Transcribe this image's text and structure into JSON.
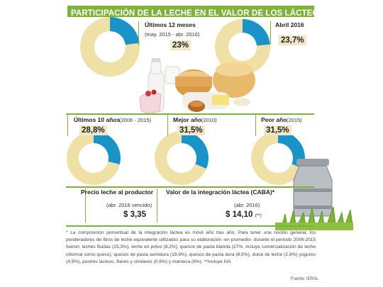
{
  "header": {
    "title": "PARTICIPACIÓN DE LA LECHE EN EL VALOR DE LOS LÁCTEOS",
    "title_mark": "(*)"
  },
  "colors": {
    "milk_share": "#1a93c9",
    "rest": "#efe0a6",
    "accent": "#7fb23a"
  },
  "charts": {
    "last12": {
      "label": "Últimos 12 meses",
      "period": "(may. 2015 - abr. 2016)",
      "value_text": "23%"
    },
    "april": {
      "label": "Abril 2016",
      "value_text": "23,7%"
    },
    "last10": {
      "label": "Últimos 10 años",
      "period": "(2006 - 2015)",
      "value_text": "28,8%"
    },
    "best": {
      "label": "Mejor año",
      "period": "(2010)",
      "value_text": "31,5%"
    },
    "worst": {
      "label": "Peor año",
      "period": "(2015)",
      "value_text": "31,5%"
    }
  },
  "prices": {
    "producer": {
      "label": "Precio leche al productor",
      "period": "(abr. 2016 vencido)",
      "value": "$ 3,35"
    },
    "caba": {
      "label": "Valor de la integración láctea (CABA)",
      "label_mark": "*",
      "period": "(abr. 2016)",
      "value": "$ 14,10",
      "value_mark": "(**)"
    }
  },
  "footnote": "* La composición porcentual de la integración láctea es móvil año tras año. Para tener una noción general, los ponderadores de litros de leche equivalente utilizados para su elaboración -en promedio- durante el período 2006-2015 fueron: leches fluidas (23,3%), leche en polvo (8,2%), quesos de pasta blanda (27%, incluye comercialización de leche informal como queso), quesos de pasta semidura (19,9%), quesos de pasta dura (8,5%), dulce de leche (2,6%) yogures (4,9%), postres lácteos, flanes y similares (0,6%) y manteca (6%). **Incluye IVA",
  "source": "Fuente: IERAL",
  "chart_data": [
    {
      "type": "pie",
      "title": "Últimos 12 meses",
      "subtitle": "(may. 2015 - abr. 2016)",
      "slices": [
        {
          "value": 23
        },
        {
          "value": 77
        }
      ]
    },
    {
      "type": "pie",
      "title": "Abril 2016",
      "slices": [
        {
          "value": 23.7
        },
        {
          "value": 76.3
        }
      ]
    },
    {
      "type": "pie",
      "title": "Últimos 10 años",
      "subtitle": "(2006 - 2015)",
      "slices": [
        {
          "value": 28.8
        },
        {
          "value": 71.2
        }
      ]
    },
    {
      "type": "pie",
      "title": "Mejor año",
      "subtitle": "(2010)",
      "slices": [
        {
          "value": 31.5
        },
        {
          "value": 68.5
        }
      ]
    },
    {
      "type": "pie",
      "title": "Peor año",
      "subtitle": "(2015)",
      "slices": [
        {
          "value": 31.5
        },
        {
          "value": 68.5
        }
      ]
    }
  ]
}
